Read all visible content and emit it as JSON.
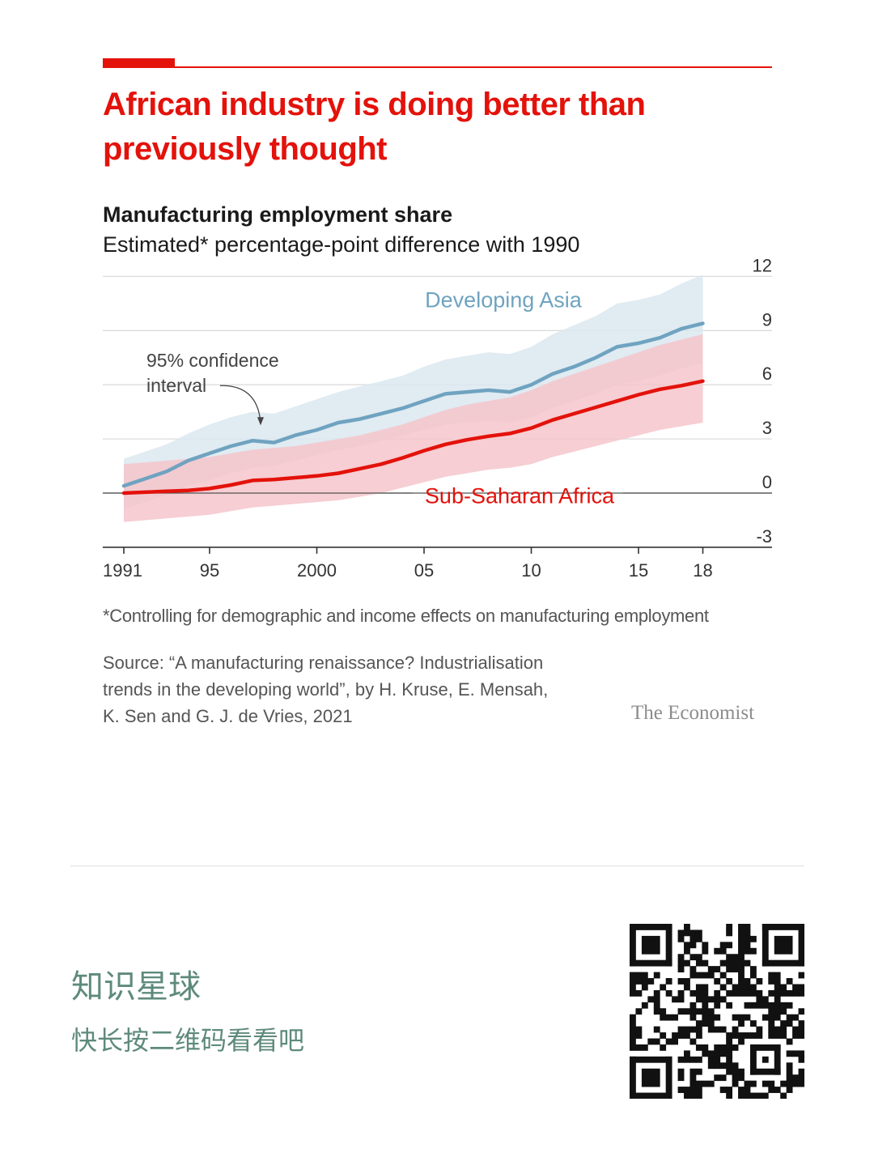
{
  "colors": {
    "brand_red": "#e3120b",
    "asia_line": "#6fa3c0",
    "asia_band": "#dbe8f0",
    "africa_line": "#e3120b",
    "africa_band": "#f4c6cb",
    "grid": "#dcdcdc",
    "promo_text": "#5e8a7c"
  },
  "header": {
    "title": "African industry is doing better than previously thought",
    "subtitle": "Manufacturing employment share",
    "subtitle_detail": "Estimated* percentage-point difference with 1990"
  },
  "chart_data": {
    "type": "line",
    "title": "Manufacturing employment share",
    "subtitle": "Estimated* percentage-point difference with 1990",
    "xlabel": "",
    "ylabel": "",
    "x": [
      1991,
      1992,
      1993,
      1994,
      1995,
      1996,
      1997,
      1998,
      1999,
      2000,
      2001,
      2002,
      2003,
      2004,
      2005,
      2006,
      2007,
      2008,
      2009,
      2010,
      2011,
      2012,
      2013,
      2014,
      2015,
      2016,
      2017,
      2018
    ],
    "xlim": [
      1991,
      2021.5
    ],
    "ylim": [
      -3,
      12
    ],
    "x_ticks": [
      1991,
      1995,
      2000,
      2005,
      2010,
      2015,
      2018
    ],
    "x_tick_labels": [
      "1991",
      "95",
      "2000",
      "05",
      "10",
      "15",
      "18"
    ],
    "y_ticks": [
      -3,
      0,
      3,
      6,
      9,
      12
    ],
    "y_tick_labels": [
      "-3",
      "0",
      "3",
      "6",
      "9",
      "12"
    ],
    "y_axis_position": "right",
    "grid": true,
    "series": [
      {
        "name": "Developing Asia",
        "values": [
          0.4,
          0.8,
          1.2,
          1.8,
          2.2,
          2.6,
          2.9,
          2.8,
          3.2,
          3.5,
          3.9,
          4.1,
          4.4,
          4.7,
          5.1,
          5.5,
          5.6,
          5.7,
          5.6,
          6.0,
          6.6,
          7.0,
          7.5,
          8.1,
          8.3,
          8.6,
          9.1,
          9.4
        ],
        "lower": [
          -0.9,
          -0.5,
          -0.1,
          0.4,
          0.7,
          1.1,
          1.4,
          1.5,
          1.8,
          2.1,
          2.4,
          2.6,
          2.9,
          3.2,
          3.5,
          3.8,
          3.9,
          4.0,
          3.9,
          4.2,
          4.7,
          5.1,
          5.5,
          6.0,
          6.2,
          6.5,
          6.9,
          7.2
        ],
        "upper": [
          1.9,
          2.3,
          2.7,
          3.3,
          3.8,
          4.2,
          4.5,
          4.4,
          4.8,
          5.2,
          5.6,
          5.9,
          6.2,
          6.5,
          7.0,
          7.4,
          7.6,
          7.8,
          7.7,
          8.1,
          8.8,
          9.3,
          9.8,
          10.5,
          10.7,
          11.0,
          11.6,
          12.1
        ]
      },
      {
        "name": "Sub-Saharan Africa",
        "values": [
          0.0,
          0.05,
          0.1,
          0.15,
          0.25,
          0.45,
          0.7,
          0.75,
          0.85,
          0.95,
          1.1,
          1.35,
          1.6,
          1.95,
          2.35,
          2.7,
          2.95,
          3.15,
          3.3,
          3.6,
          4.05,
          4.4,
          4.75,
          5.1,
          5.45,
          5.75,
          5.95,
          6.2
        ],
        "lower": [
          -1.6,
          -1.5,
          -1.4,
          -1.3,
          -1.2,
          -1.0,
          -0.8,
          -0.7,
          -0.6,
          -0.5,
          -0.4,
          -0.2,
          0.0,
          0.3,
          0.6,
          0.9,
          1.1,
          1.3,
          1.4,
          1.6,
          2.0,
          2.3,
          2.6,
          2.9,
          3.2,
          3.5,
          3.7,
          3.9
        ],
        "upper": [
          1.6,
          1.7,
          1.8,
          1.9,
          2.0,
          2.2,
          2.4,
          2.5,
          2.6,
          2.8,
          3.0,
          3.2,
          3.5,
          3.8,
          4.2,
          4.6,
          4.9,
          5.1,
          5.3,
          5.7,
          6.2,
          6.6,
          7.0,
          7.4,
          7.8,
          8.2,
          8.5,
          8.8
        ]
      }
    ],
    "annotations": [
      {
        "text": "Developing Asia",
        "series": "Developing Asia"
      },
      {
        "text": "Sub-Saharan Africa",
        "series": "Sub-Saharan Africa"
      },
      {
        "text_lines": [
          "95% confidence",
          "interval"
        ],
        "points_to": "confidence band"
      }
    ]
  },
  "footnote": "*Controlling for demographic and income effects on manufacturing employment",
  "source_lines": [
    "Source: “A manufacturing renaissance? Industrialisation",
    "trends in the developing world”, by H. Kruse, E. Mensah,",
    "K. Sen and G. J. de Vries, 2021"
  ],
  "brand": "The Economist",
  "promo": {
    "title": "知识星球",
    "subtitle": "快长按二维码看看吧"
  },
  "qr_icon": "qr-code-icon"
}
